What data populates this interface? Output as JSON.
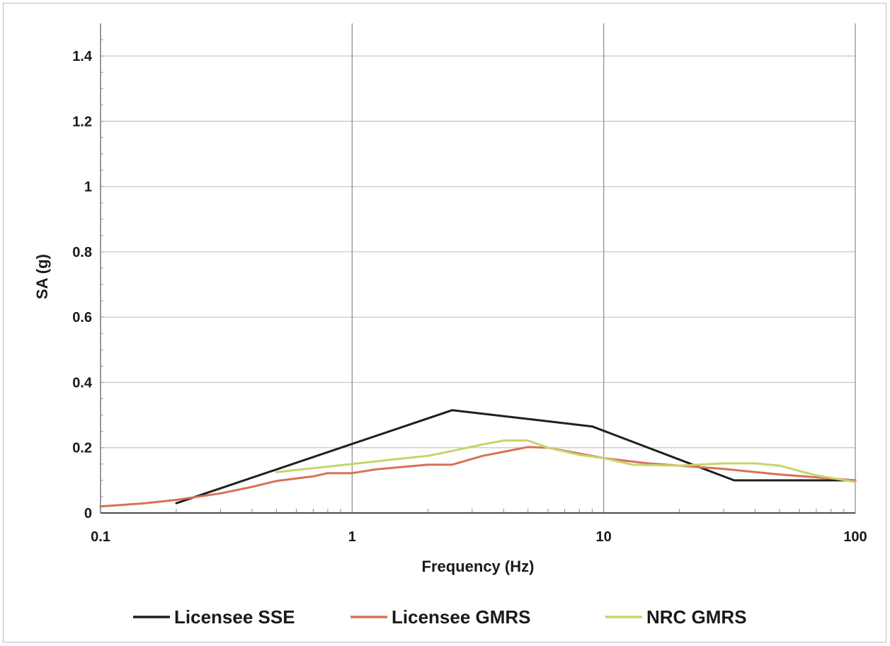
{
  "chart_data": {
    "type": "line",
    "xscale": "log",
    "xlabel": "Frequency (Hz)",
    "ylabel": "SA (g)",
    "xlim": [
      0.1,
      100
    ],
    "ylim": [
      0,
      1.5
    ],
    "x_ticks": [
      0.1,
      1,
      10,
      100
    ],
    "x_tick_labels": [
      "0.1",
      "1",
      "10",
      "100"
    ],
    "y_ticks": [
      0,
      0.2,
      0.4,
      0.6,
      0.8,
      1,
      1.2,
      1.4
    ],
    "y_tick_labels": [
      "0",
      "0.2",
      "0.4",
      "0.6",
      "0.8",
      "1",
      "1.2",
      "1.4"
    ],
    "grid": true,
    "legend_position": "bottom",
    "series": [
      {
        "name": "Licensee SSE",
        "color": "#1f1f1f",
        "x": [
          0.2,
          2.5,
          9,
          33,
          100
        ],
        "y": [
          0.03,
          0.315,
          0.265,
          0.1,
          0.1
        ]
      },
      {
        "name": "Licensee GMRS",
        "color": "#d9705a",
        "x": [
          0.1,
          0.15,
          0.2,
          0.3,
          0.4,
          0.5,
          0.7,
          0.8,
          1,
          1.25,
          2,
          2.5,
          3.3,
          5,
          6,
          10,
          15,
          20,
          30,
          50,
          100
        ],
        "y": [
          0.02,
          0.03,
          0.04,
          0.06,
          0.08,
          0.098,
          0.112,
          0.122,
          0.122,
          0.134,
          0.148,
          0.148,
          0.175,
          0.202,
          0.2,
          0.168,
          0.152,
          0.145,
          0.135,
          0.118,
          0.1
        ]
      },
      {
        "name": "NRC GMRS",
        "color": "#c8d46a",
        "x": [
          0.5,
          0.8,
          1,
          1.5,
          2,
          2.5,
          3.3,
          4,
          5,
          6,
          8,
          10,
          13,
          20,
          30,
          40,
          50,
          70,
          100
        ],
        "y": [
          0.125,
          0.142,
          0.15,
          0.165,
          0.175,
          0.19,
          0.21,
          0.222,
          0.222,
          0.2,
          0.178,
          0.168,
          0.148,
          0.145,
          0.152,
          0.152,
          0.145,
          0.115,
          0.095
        ]
      }
    ]
  }
}
